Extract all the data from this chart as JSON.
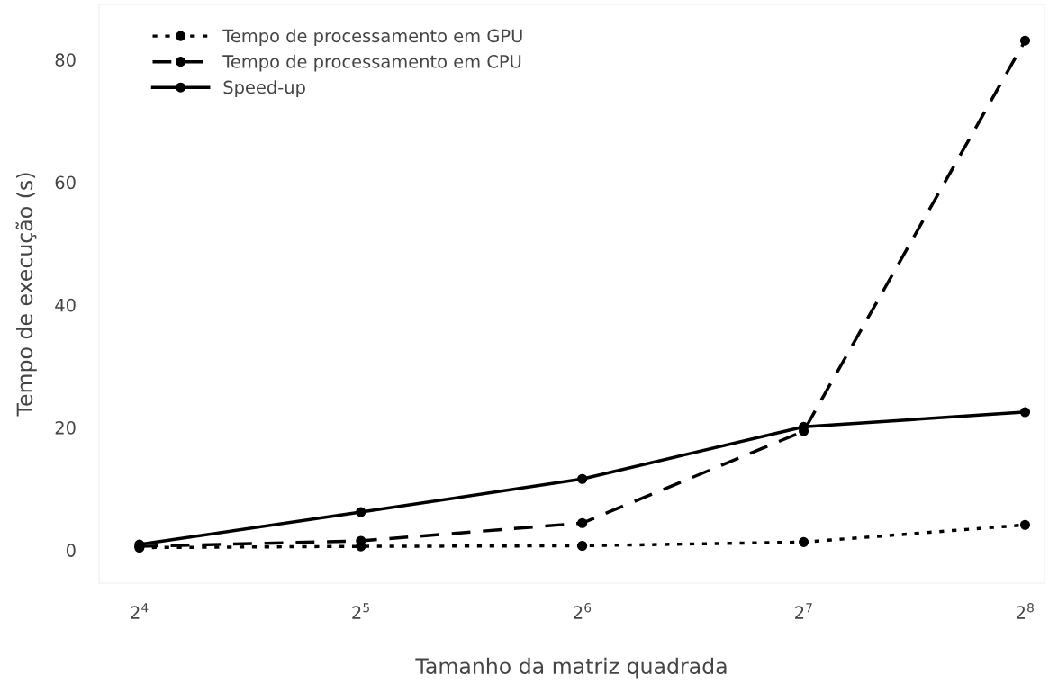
{
  "chart_data": {
    "type": "line",
    "xlabel": "Tamanho da matriz quadrada",
    "ylabel": "Tempo de execução (s)",
    "x": [
      16,
      32,
      64,
      128,
      256
    ],
    "log": "x",
    "xlim": [
      14.1,
      272
    ],
    "xticks": [
      {
        "value": 16,
        "label": "2$^{4}$"
      },
      {
        "value": 32,
        "label": "2$^{5}$"
      },
      {
        "value": 64,
        "label": "2$^{6}$"
      },
      {
        "value": 128,
        "label": "2$^{7}$"
      },
      {
        "value": 256,
        "label": "2$^{8}$"
      }
    ],
    "series": [
      {
        "name": "Tempo de processamento em GPU",
        "color": "#000000",
        "line_style": "dotted",
        "values": [
          0.4,
          0.6,
          0.7,
          1.3,
          4.1
        ]
      },
      {
        "name": "Tempo de processamento em CPU",
        "color": "#000000",
        "line_style": "dashed",
        "values": [
          0.6,
          1.5,
          4.4,
          19.4,
          83.1
        ]
      },
      {
        "name": "Speed-up",
        "color": "#000000",
        "line_style": "solid",
        "values": [
          0.9,
          6.2,
          11.6,
          20.1,
          22.5
        ]
      }
    ],
    "ylim": [
      -5.4,
      89
    ],
    "yticks": [
      0,
      20,
      40,
      60,
      80
    ],
    "grid": false,
    "legend": "top left",
    "marker": "circle"
  }
}
